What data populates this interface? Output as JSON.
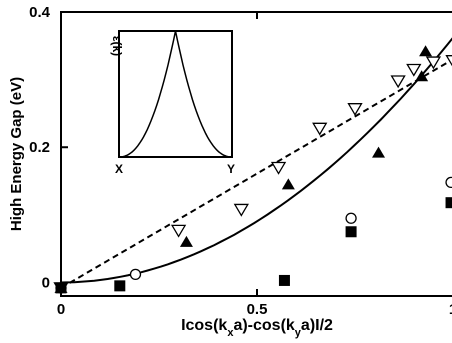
{
  "chart_data": {
    "type": "scatter",
    "xlabel_parts": [
      {
        "text": "Icos(k",
        "sub": false
      },
      {
        "text": "x",
        "sub": true
      },
      {
        "text": "a)-cos(k",
        "sub": false
      },
      {
        "text": "y",
        "sub": true
      },
      {
        "text": "a)I/2",
        "sub": false
      }
    ],
    "ylabel": "High Energy Gap (eV)",
    "xlim": [
      0,
      1
    ],
    "ylim": [
      -0.02,
      0.4
    ],
    "x_ticks": [
      {
        "value": 0,
        "label": "0"
      },
      {
        "value": 0.5,
        "label": "0.5"
      },
      {
        "value": 1,
        "label": "1"
      }
    ],
    "y_ticks": [
      {
        "value": 0,
        "label": "0"
      },
      {
        "value": 0.2,
        "label": "0.2"
      },
      {
        "value": 0.4,
        "label": "0.4"
      }
    ],
    "grid": false,
    "series": [
      {
        "marker": "triangle-up-open",
        "points": [
          [
            0.0,
            -0.008
          ],
          [
            0.3,
            0.077
          ],
          [
            0.46,
            0.108
          ],
          [
            0.555,
            0.17
          ],
          [
            0.66,
            0.228
          ],
          [
            0.75,
            0.257
          ],
          [
            0.86,
            0.298
          ],
          [
            0.9,
            0.315
          ],
          [
            0.95,
            0.326
          ],
          [
            1.0,
            0.328
          ]
        ]
      },
      {
        "marker": "triangle-up-filled",
        "points": [
          [
            0.0,
            -0.008
          ],
          [
            0.32,
            0.06
          ],
          [
            0.58,
            0.145
          ],
          [
            0.81,
            0.192
          ],
          [
            0.92,
            0.305
          ],
          [
            0.93,
            0.342
          ]
        ]
      },
      {
        "marker": "circle-open",
        "points": [
          [
            0.0,
            -0.008
          ],
          [
            0.19,
            0.012
          ],
          [
            0.74,
            0.095
          ],
          [
            0.995,
            0.148
          ]
        ]
      },
      {
        "marker": "square-filled",
        "points": [
          [
            0.0,
            -0.008
          ],
          [
            0.15,
            -0.005
          ],
          [
            0.57,
            0.003
          ],
          [
            0.74,
            0.075
          ],
          [
            0.995,
            0.118
          ]
        ]
      }
    ],
    "fit_lines": [
      {
        "style": "solid",
        "form": "quadratic",
        "coef": 0.362
      },
      {
        "style": "dashed",
        "form": "linear",
        "points": [
          [
            0,
            -0.008
          ],
          [
            1,
            0.33
          ]
        ]
      }
    ],
    "inset": {
      "ylabel": "ε(k)",
      "x_labels": [
        "X",
        "Y"
      ]
    }
  }
}
